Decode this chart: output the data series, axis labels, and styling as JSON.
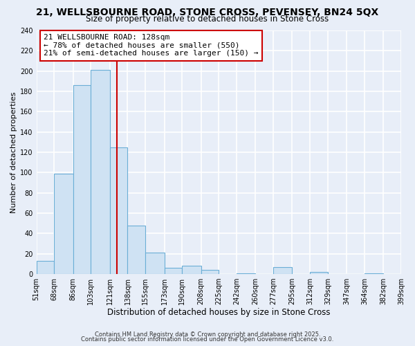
{
  "title": "21, WELLSBOURNE ROAD, STONE CROSS, PEVENSEY, BN24 5QX",
  "subtitle": "Size of property relative to detached houses in Stone Cross",
  "xlabel": "Distribution of detached houses by size in Stone Cross",
  "ylabel": "Number of detached properties",
  "bin_edges": [
    51,
    68,
    86,
    103,
    121,
    138,
    155,
    173,
    190,
    208,
    225,
    242,
    260,
    277,
    295,
    312,
    329,
    347,
    364,
    382,
    399
  ],
  "bar_heights": [
    13,
    99,
    186,
    201,
    125,
    48,
    21,
    6,
    8,
    4,
    0,
    1,
    0,
    7,
    0,
    2,
    0,
    0,
    1,
    0
  ],
  "bar_color": "#cfe2f3",
  "bar_edge_color": "#6baed6",
  "vline_x": 128,
  "vline_color": "#cc0000",
  "annotation_text": "21 WELLSBOURNE ROAD: 128sqm\n← 78% of detached houses are smaller (550)\n21% of semi-detached houses are larger (150) →",
  "annotation_box_color": "white",
  "annotation_box_edge_color": "#cc0000",
  "ylim": [
    0,
    240
  ],
  "yticks": [
    0,
    20,
    40,
    60,
    80,
    100,
    120,
    140,
    160,
    180,
    200,
    220,
    240
  ],
  "bg_color": "#e8eef8",
  "grid_color": "white",
  "footer_line1": "Contains HM Land Registry data © Crown copyright and database right 2025.",
  "footer_line2": "Contains public sector information licensed under the Open Government Licence v3.0.",
  "title_fontsize": 10,
  "subtitle_fontsize": 8.5,
  "xlabel_fontsize": 8.5,
  "ylabel_fontsize": 8,
  "tick_fontsize": 7,
  "annotation_fontsize": 8,
  "footer_fontsize": 6
}
